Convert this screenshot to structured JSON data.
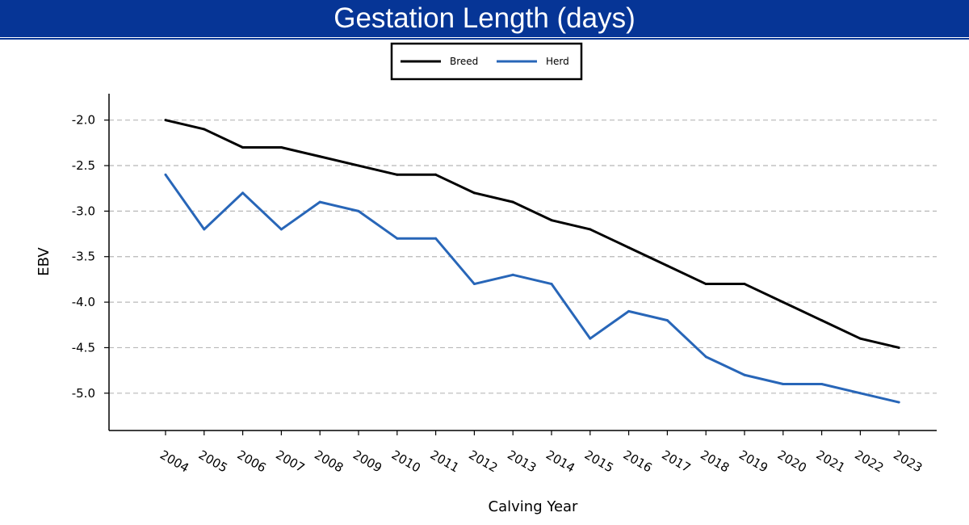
{
  "chart_data": {
    "type": "line",
    "title": "Gestation Length (days)",
    "xlabel": "Calving Year",
    "ylabel": "EBV",
    "categories": [
      "2004",
      "2005",
      "2006",
      "2007",
      "2008",
      "2009",
      "2010",
      "2011",
      "2012",
      "2013",
      "2014",
      "2015",
      "2016",
      "2017",
      "2018",
      "2019",
      "2020",
      "2021",
      "2022",
      "2023"
    ],
    "yticks": [
      -2.0,
      -2.5,
      -3.0,
      -3.5,
      -4.0,
      -4.5,
      -5.0
    ],
    "ytick_labels": [
      "-2.0",
      "-2.5",
      "-3.0",
      "-3.5",
      "-4.0",
      "-4.5",
      "-5.0"
    ],
    "ylim": [
      -5.41,
      -1.71
    ],
    "grid": "horizontal dashed",
    "legend_position": "top-center",
    "series": [
      {
        "name": "Breed",
        "color": "#000000",
        "values": [
          -2.0,
          -2.1,
          -2.3,
          -2.3,
          -2.4,
          -2.5,
          -2.6,
          -2.6,
          -2.8,
          -2.9,
          -3.1,
          -3.2,
          -3.4,
          -3.6,
          -3.8,
          -3.8,
          -4.0,
          -4.2,
          -4.4,
          -4.5
        ]
      },
      {
        "name": "Herd",
        "color": "#2866B8",
        "values": [
          -2.6,
          -3.2,
          -2.8,
          -3.2,
          -2.9,
          -3.0,
          -3.3,
          -3.3,
          -3.8,
          -3.7,
          -3.8,
          -4.4,
          -4.1,
          -4.2,
          -4.6,
          -4.8,
          -4.9,
          -4.9,
          -5.0,
          -5.1
        ]
      }
    ]
  },
  "colors": {
    "title_bar": "#063596",
    "grid": "#b8b8b8"
  }
}
